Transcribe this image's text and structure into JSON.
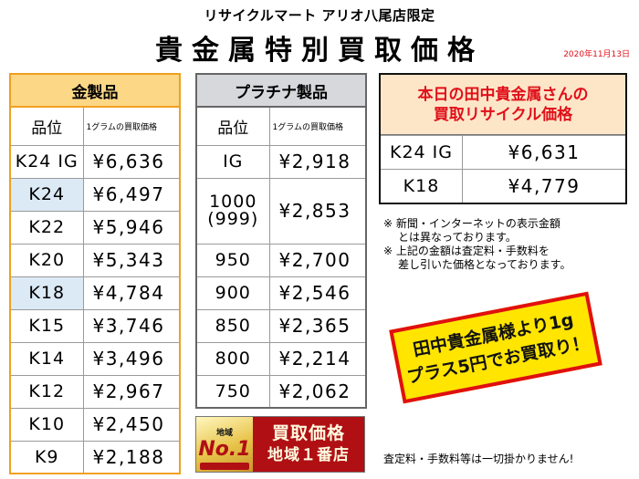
{
  "header": {
    "store": "リサイクルマート アリオ八尾店限定",
    "title": "貴金属特別買取価格",
    "date": "2020年11月13日"
  },
  "gold": {
    "title": "金製品",
    "col_grade": "品位",
    "col_price": "1グラムの買取価格",
    "rows": [
      {
        "grade": "K24 IG",
        "price": "¥6,636"
      },
      {
        "grade": "K24",
        "price": "¥6,497"
      },
      {
        "grade": "K22",
        "price": "¥5,946"
      },
      {
        "grade": "K20",
        "price": "¥5,343"
      },
      {
        "grade": "K18",
        "price": "¥4,784"
      },
      {
        "grade": "K15",
        "price": "¥3,746"
      },
      {
        "grade": "K14",
        "price": "¥3,496"
      },
      {
        "grade": "K12",
        "price": "¥2,967"
      },
      {
        "grade": "K10",
        "price": "¥2,450"
      },
      {
        "grade": "K9",
        "price": "¥2,188"
      }
    ]
  },
  "platinum": {
    "title": "プラチナ製品",
    "col_grade": "品位",
    "col_price": "1グラムの買取価格",
    "rows": [
      {
        "grade": "IG",
        "price": "¥2,918"
      },
      {
        "grade": "1000",
        "grade2": "(999)",
        "price": "¥2,853"
      },
      {
        "grade": "950",
        "price": "¥2,700"
      },
      {
        "grade": "900",
        "price": "¥2,546"
      },
      {
        "grade": "850",
        "price": "¥2,365"
      },
      {
        "grade": "800",
        "price": "¥2,214"
      },
      {
        "grade": "750",
        "price": "¥2,062"
      }
    ]
  },
  "today": {
    "title_line1": "本日の田中貴金属さんの",
    "title_line2": "買取リサイクル価格",
    "rows": [
      {
        "grade": "K24 IG",
        "price": "¥6,631"
      },
      {
        "grade": "K18",
        "price": "¥4,779"
      }
    ]
  },
  "notes": {
    "line1": "※ 新聞・インターネットの表示金額",
    "line2": "とは異なっております。",
    "line3": "※ 上記の金額は査定料・手数料を",
    "line4": "差し引いた価格となっております。"
  },
  "promo": {
    "line1": "田中貴金属様より1g",
    "line2": "プラス5円でお買取り！"
  },
  "badge": {
    "small": "地域",
    "no1": "No.1",
    "line1": "買取価格",
    "line2": "地域１番店"
  },
  "footer": "査定料・手数料等は一切掛かりません!",
  "colors": {
    "gold_border": "#f0a020",
    "gold_header": "#fbd786",
    "highlight": "#dceaf6",
    "platinum_header": "#d6d8dc",
    "today_header": "#fde6c8",
    "red": "#e0101a",
    "promo_yellow": "#ffe500"
  }
}
